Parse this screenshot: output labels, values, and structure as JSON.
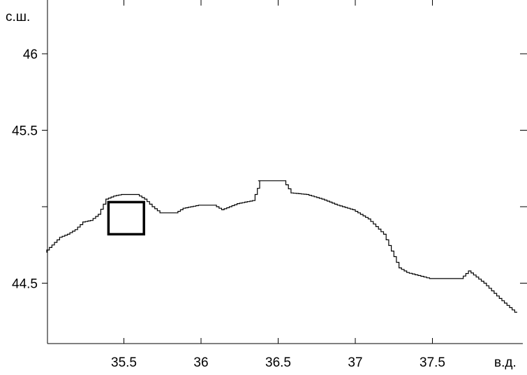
{
  "map": {
    "lat_unit": "с.ш.",
    "lon_unit": "в.д.",
    "x_ticks": [
      {
        "value": 35.5,
        "label": "35.5"
      },
      {
        "value": 36,
        "label": "36"
      },
      {
        "value": 36.5,
        "label": "36.5"
      },
      {
        "value": 37,
        "label": "37"
      },
      {
        "value": 37.5,
        "label": "37.5"
      }
    ],
    "y_ticks": [
      {
        "value": 46,
        "label": "46"
      },
      {
        "value": 45.5,
        "label": "45.5"
      },
      {
        "value": 45,
        "label": ""
      },
      {
        "value": 44.5,
        "label": "44.5"
      }
    ],
    "coastline_lonlat": [
      [
        35.0,
        44.7
      ],
      [
        35.05,
        44.75
      ],
      [
        35.1,
        44.8
      ],
      [
        35.15,
        44.82
      ],
      [
        35.2,
        44.85
      ],
      [
        35.25,
        44.9
      ],
      [
        35.3,
        44.91
      ],
      [
        35.35,
        44.95
      ],
      [
        35.4,
        45.05
      ],
      [
        35.45,
        45.07
      ],
      [
        35.5,
        45.08
      ],
      [
        35.6,
        45.08
      ],
      [
        35.65,
        45.05
      ],
      [
        35.7,
        45.0
      ],
      [
        35.75,
        44.96
      ],
      [
        35.85,
        44.96
      ],
      [
        35.9,
        44.99
      ],
      [
        36.0,
        45.01
      ],
      [
        36.1,
        45.01
      ],
      [
        36.15,
        44.98
      ],
      [
        36.25,
        45.02
      ],
      [
        36.35,
        45.04
      ],
      [
        36.38,
        45.12
      ],
      [
        36.37,
        45.17
      ],
      [
        36.55,
        45.17
      ],
      [
        36.6,
        45.09
      ],
      [
        36.7,
        45.08
      ],
      [
        36.8,
        45.05
      ],
      [
        36.9,
        45.01
      ],
      [
        37.0,
        44.98
      ],
      [
        37.1,
        44.92
      ],
      [
        37.2,
        44.82
      ],
      [
        37.3,
        44.6
      ],
      [
        37.35,
        44.57
      ],
      [
        37.5,
        44.53
      ],
      [
        37.7,
        44.53
      ],
      [
        37.75,
        44.58
      ],
      [
        37.85,
        44.5
      ],
      [
        37.95,
        44.4
      ],
      [
        38.05,
        44.31
      ]
    ],
    "box_lonlat": {
      "lon_min": 35.4,
      "lon_max": 35.63,
      "lat_min": 44.82,
      "lat_max": 45.03
    }
  }
}
